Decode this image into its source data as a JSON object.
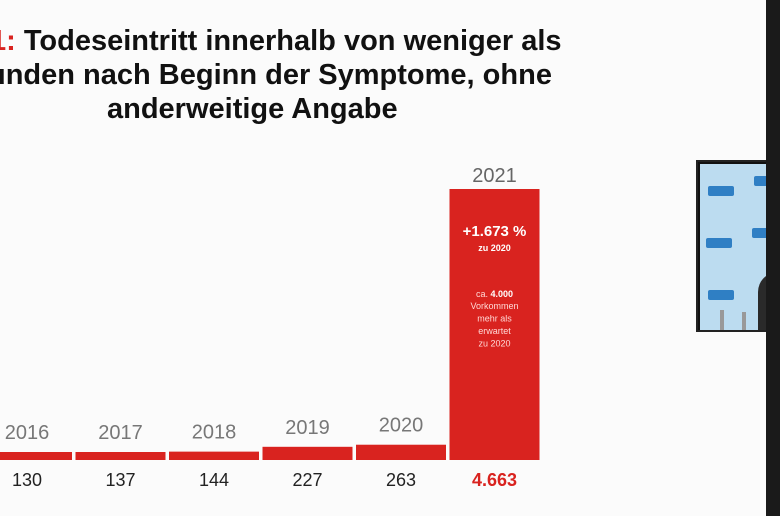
{
  "title": {
    "prefix": "1:",
    "line1": "Todeseintritt innerhalb von weniger als",
    "line2": "unden nach Beginn der Symptome, ohne",
    "line3": "anderweitige Angabe"
  },
  "chart_data": {
    "type": "bar",
    "categories": [
      "2016",
      "2017",
      "2018",
      "2019",
      "2020",
      "2021"
    ],
    "values": [
      130,
      137,
      144,
      227,
      263,
      4663
    ],
    "value_labels": [
      "130",
      "137",
      "144",
      "227",
      "263",
      "4.663"
    ],
    "highlight_index": 5,
    "title": "",
    "xlabel": "",
    "ylabel": "",
    "ylim": [
      0,
      4663
    ],
    "grid": false,
    "annotation": {
      "pct": "+1.673 %",
      "pct_sub": "zu 2020",
      "note_pre": "ca.",
      "note_bold": "4.000",
      "note_lines": [
        "Vorkommen",
        "mehr als",
        "erwartet",
        "zu 2020"
      ]
    },
    "colors": {
      "bar": "#d9231f",
      "highlight_value": "#d9231f"
    }
  },
  "video_overlay": {
    "icon": "speaker-video-thumbnail-icon"
  }
}
